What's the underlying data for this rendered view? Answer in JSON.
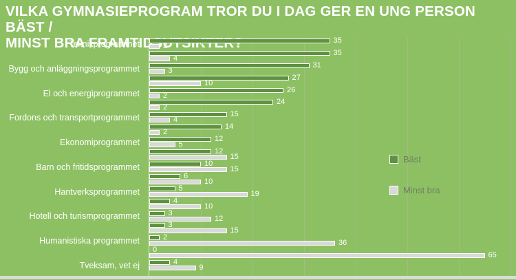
{
  "title_lines": [
    "VILKA GYMNASIEPROGRAM TROR DU I DAG GER EN UNG PERSON BÄST /",
    "MINST BRA FRAMTIDSUTSIKTER?"
  ],
  "legend": {
    "items": [
      {
        "label": "Bäst"
      },
      {
        "label": "Minst bra"
      }
    ]
  },
  "colors": {
    "background": "#8dc063",
    "bar_best": "#5e9241",
    "bar_worst": "#d9d9d9",
    "bar_outline": "#ffffff",
    "gridline": "#a2bd82",
    "title_text": "#ffffff",
    "category_text": "#ffffff",
    "value_text": "#ffffff",
    "legend_text": "#707e62",
    "bottom_strip": "#d9d9d9"
  },
  "chart_data": {
    "type": "bar",
    "orientation": "horizontal",
    "title": "VILKA GYMNASIEPROGRAM TROR DU I DAG GER EN UNG PERSON BÄST / MINST BRA FRAMTIDSUTSIKTER?",
    "categories": [
      "Teknikprogrammet",
      "",
      "Bygg och anläggningsprogrammet",
      "",
      "El och energiprogrammet",
      "",
      "Fordons och transportprogrammet",
      "",
      "Ekonomiprogrammet",
      "",
      "Barn och fritidsprogrammet",
      "",
      "Hantverksprogrammet",
      "",
      "Hotell och turismprogrammet",
      "",
      "Humanistiska programmet",
      "",
      "Tveksam, vet ej"
    ],
    "series": [
      {
        "name": "Bäst",
        "color": "#5e9241",
        "values": [
          35,
          35,
          31,
          27,
          26,
          24,
          15,
          14,
          12,
          12,
          10,
          6,
          5,
          4,
          3,
          3,
          2,
          0,
          4
        ]
      },
      {
        "name": "Minst bra",
        "color": "#d9d9d9",
        "values": [
          2,
          4,
          3,
          10,
          2,
          2,
          4,
          2,
          5,
          15,
          15,
          10,
          19,
          10,
          12,
          15,
          36,
          65,
          9
        ]
      }
    ],
    "value_labels_shown": true,
    "xlim": [
      0,
      70
    ],
    "gridline_interval": 10,
    "grid": true,
    "legend_position": "right"
  }
}
